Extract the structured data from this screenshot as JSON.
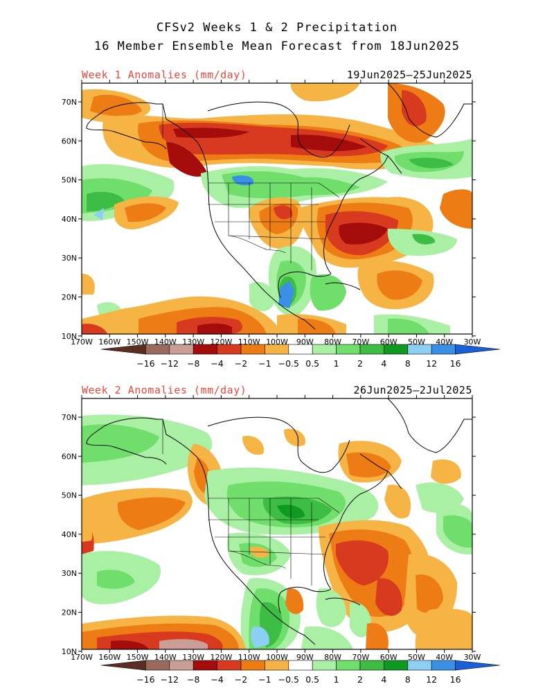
{
  "header": {
    "title_line1": "CFSv2 Weeks 1 & 2 Precipitation",
    "title_line2": "16 Member Ensemble Mean Forecast from 18Jun2025"
  },
  "panels": [
    {
      "label": "Week 1 Anomalies (mm/day)",
      "dates": "19Jun2025–25Jun2025"
    },
    {
      "label": "Week 2 Anomalies (mm/day)",
      "dates": "26Jun2025–2Jul2025"
    }
  ],
  "axes": {
    "lat_labels": [
      "70N",
      "60N",
      "50N",
      "40N",
      "30N",
      "20N",
      "10N"
    ],
    "lon_labels": [
      "170W",
      "160W",
      "150W",
      "140W",
      "130W",
      "120W",
      "110W",
      "100W",
      "90W",
      "80W",
      "70W",
      "60W",
      "50W",
      "40W",
      "30W"
    ]
  },
  "colorbar": {
    "labels": [
      "−16",
      "−12",
      "−8",
      "−4",
      "−2",
      "−1",
      "−0.5",
      "0.5",
      "1",
      "2",
      "4",
      "8",
      "12",
      "16"
    ],
    "colors": [
      "#5c2e22",
      "#9b6a5e",
      "#c99e95",
      "#a50d0d",
      "#d83a20",
      "#ee7c14",
      "#f6b445",
      "#ffffff",
      "#a9f0a4",
      "#6fde6a",
      "#3ebd45",
      "#0f9a22",
      "#8ccff5",
      "#3a8fe6",
      "#1a5fd6"
    ]
  },
  "colors": {
    "title_red": "#e8473a",
    "dry_light": "#f6b445",
    "dry_mid": "#ee7c14",
    "dry_strong": "#d83a20",
    "dry_extreme": "#a50d0d",
    "wet_light": "#a9f0a4",
    "wet_mid": "#6fde6a",
    "wet_strong": "#3ebd45",
    "wet_extreme": "#0f9a22",
    "blue_light": "#8ccff5",
    "blue_mid": "#3a8fe6"
  }
}
